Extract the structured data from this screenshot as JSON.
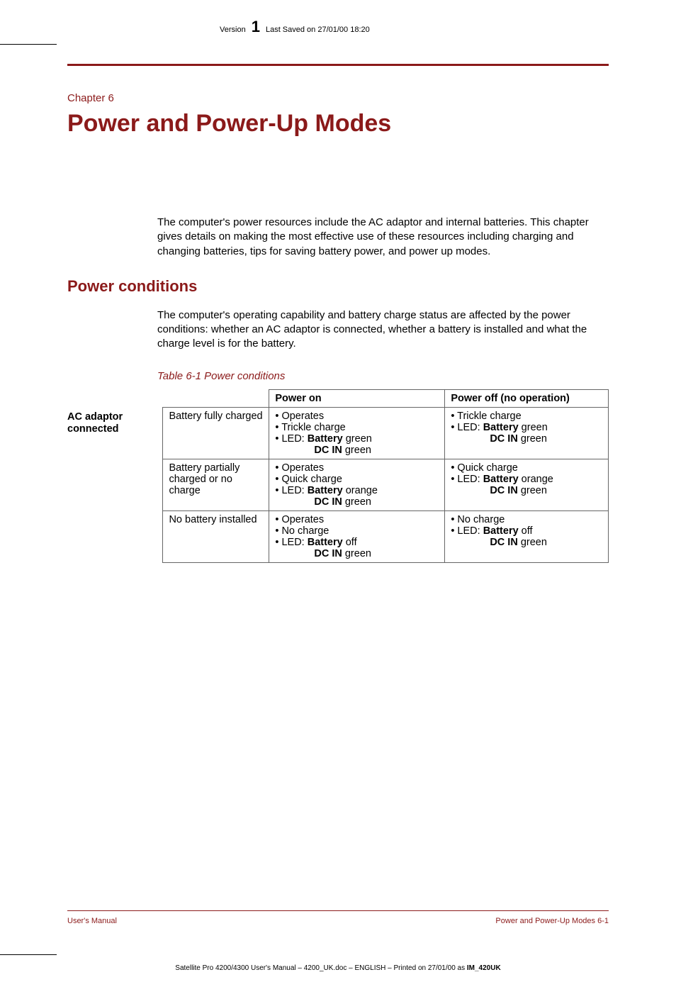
{
  "header": {
    "version_label": "Version",
    "version_number": "1",
    "saved_text": "Last Saved on 27/01/00 18:20"
  },
  "chapter": {
    "label": "Chapter 6",
    "title": "Power and Power-Up Modes"
  },
  "intro_para": "The computer's power resources include the AC adaptor and internal batteries. This chapter gives details on making the most effective use of these resources including charging and changing batteries, tips for saving battery power, and power up modes.",
  "section_heading": "Power conditions",
  "section_para": "The computer's operating capability and battery charge status are affected by the power conditions: whether an AC adaptor is connected, whether a battery is installed and what the charge level is for the battery.",
  "table": {
    "caption": "Table 6-1 Power conditions",
    "col_headers": {
      "on": "Power on",
      "off": "Power off (no operation)"
    },
    "row_group_label": "AC adaptor connected",
    "rows": [
      {
        "state": "Battery fully charged",
        "on": {
          "l1": "• Operates",
          "l2": "• Trickle charge",
          "l3a": "• LED:  ",
          "l3b": "Battery",
          "l3c": " green",
          "l4b": "DC IN",
          "l4c": " green"
        },
        "off": {
          "l1": "• Trickle charge",
          "l2a": "• LED:  ",
          "l2b": "Battery",
          "l2c": " green",
          "l3b": "DC IN",
          "l3c": " green"
        }
      },
      {
        "state": "Battery partially charged or no charge",
        "on": {
          "l1": "• Operates",
          "l2": "• Quick charge",
          "l3a": "• LED:  ",
          "l3b": "Battery",
          "l3c": " orange",
          "l4b": "DC IN",
          "l4c": " green"
        },
        "off": {
          "l1": "• Quick charge",
          "l2a": "• LED:  ",
          "l2b": "Battery",
          "l2c": " orange",
          "l3b": "DC IN",
          "l3c": " green"
        }
      },
      {
        "state": "No battery installed",
        "on": {
          "l1": "• Operates",
          "l2": "• No charge",
          "l3a": "• LED:  ",
          "l3b": "Battery",
          "l3c": " off",
          "l4b": "DC IN",
          "l4c": " green"
        },
        "off": {
          "l1": "• No charge",
          "l2a": "• LED:  ",
          "l2b": "Battery",
          "l2c": " off",
          "l3b": "DC IN",
          "l3c": " green"
        }
      }
    ]
  },
  "footer": {
    "left": "User's Manual",
    "right": "Power and Power-Up Modes  6-1",
    "meta_a": "Satellite Pro 4200/4300 User's Manual  – 4200_UK.doc – ENGLISH – Printed on 27/01/00 as ",
    "meta_b": "IM_420UK"
  },
  "colors": {
    "accent": "#8b1a1a",
    "text": "#000000",
    "border": "#666666",
    "bg": "#ffffff"
  },
  "fonts": {
    "body_size_pt": 11,
    "title_size_pt": 26,
    "heading_size_pt": 17,
    "family": "Arial"
  }
}
